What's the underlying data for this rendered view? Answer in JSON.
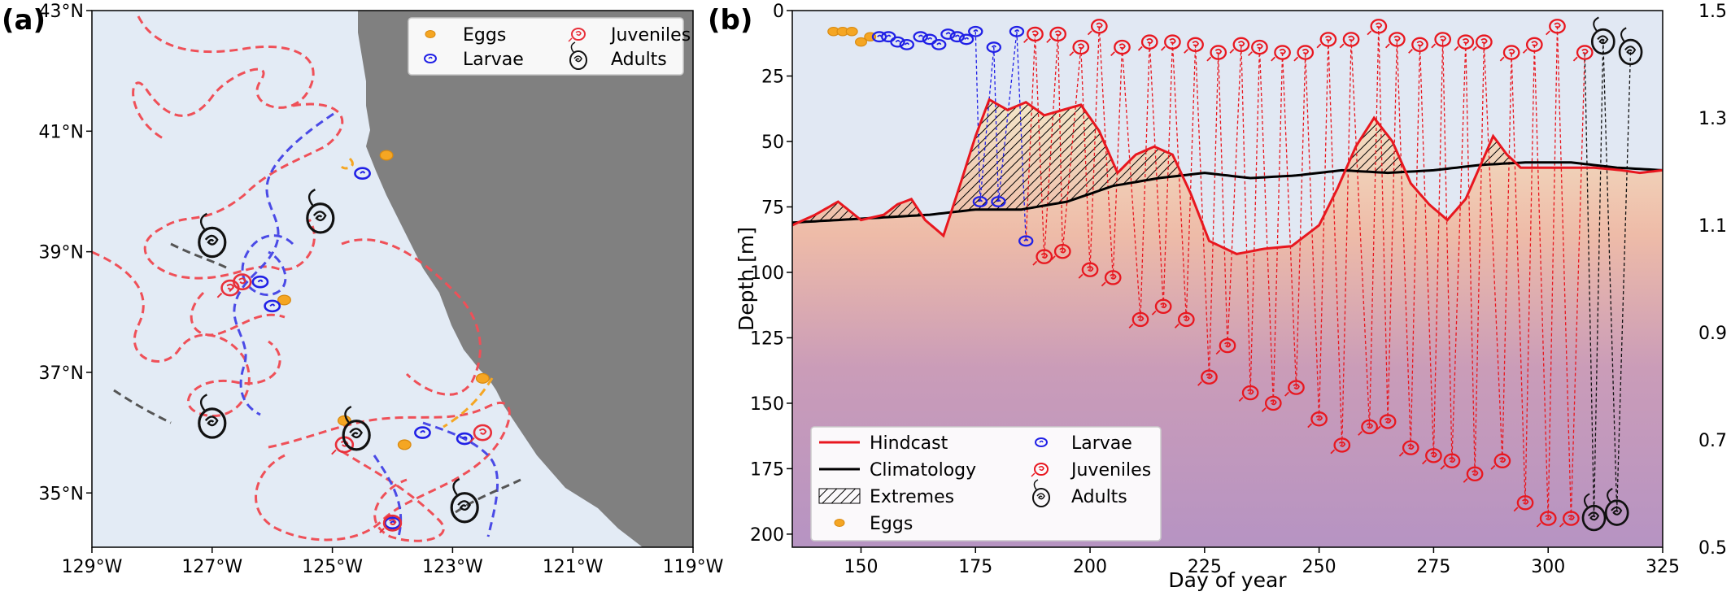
{
  "chart_data": [
    {
      "panel": "(a)",
      "type": "map",
      "x_ticks": [
        "129°W",
        "127°W",
        "125°W",
        "123°W",
        "121°W",
        "119°W"
      ],
      "y_ticks": [
        "43°N",
        "41°N",
        "39°N",
        "37°N",
        "35°N"
      ],
      "xlim": [
        -129,
        -119
      ],
      "ylim": [
        34.1,
        43
      ],
      "legend": [
        "Eggs",
        "Juveniles",
        "Larvae",
        "Adults"
      ],
      "legend_position": "top-right",
      "colors": {
        "ocean": "#e3ebf5",
        "land": "#808080",
        "eggs": "#f5a623",
        "larvae": "#2020e6",
        "juveniles": "#e8303a",
        "adults": "#111111"
      },
      "markers": {
        "adults": [
          {
            "lon": -127.0,
            "lat": 39.2
          },
          {
            "lon": -125.2,
            "lat": 39.6
          },
          {
            "lon": -127.0,
            "lat": 36.2
          },
          {
            "lon": -124.6,
            "lat": 36.0
          },
          {
            "lon": -122.8,
            "lat": 34.8
          }
        ],
        "juveniles": [
          {
            "lon": -126.7,
            "lat": 38.4
          },
          {
            "lon": -126.5,
            "lat": 38.5
          },
          {
            "lon": -124.8,
            "lat": 35.8
          },
          {
            "lon": -122.5,
            "lat": 36.0
          },
          {
            "lon": -124.0,
            "lat": 34.5
          }
        ],
        "larvae": [
          {
            "lon": -124.5,
            "lat": 40.3
          },
          {
            "lon": -126.2,
            "lat": 38.5
          },
          {
            "lon": -126.0,
            "lat": 38.1
          },
          {
            "lon": -123.5,
            "lat": 36.0
          },
          {
            "lon": -122.8,
            "lat": 35.9
          },
          {
            "lon": -124.0,
            "lat": 34.5
          }
        ],
        "eggs": [
          {
            "lon": -124.1,
            "lat": 40.6
          },
          {
            "lon": -125.8,
            "lat": 38.2
          },
          {
            "lon": -122.5,
            "lat": 36.9
          },
          {
            "lon": -123.8,
            "lat": 35.8
          },
          {
            "lon": -124.8,
            "lat": 36.2
          }
        ]
      }
    },
    {
      "panel": "(b)",
      "type": "line",
      "xlabel": "Day of year",
      "ylabel": "Depth [m]",
      "xlim": [
        135,
        325
      ],
      "ylim": [
        205,
        0
      ],
      "x_ticks": [
        150,
        175,
        200,
        225,
        250,
        275,
        300,
        325
      ],
      "y_ticks": [
        0,
        25,
        50,
        75,
        100,
        125,
        150,
        175,
        200
      ],
      "right_ticks": [
        "1.5",
        "1.3",
        "1.1",
        "0.9",
        "0.7",
        "0.5"
      ],
      "legend": [
        "Hindcast",
        "Climatology",
        "Extremes",
        "Eggs",
        "Larvae",
        "Juveniles",
        "Adults"
      ],
      "legend_position": "lower-left",
      "colors": {
        "hindcast": "#e8171f",
        "climatology": "#000000",
        "eggs": "#f5a623",
        "larvae": "#2020e6",
        "juveniles": "#e8171f",
        "adults": "#111111",
        "background": "#e1e8f3"
      },
      "series": [
        {
          "name": "Hindcast",
          "x": [
            135,
            140,
            145,
            150,
            155,
            158,
            161,
            164,
            168,
            171,
            175,
            178,
            182,
            186,
            190,
            194,
            198,
            202,
            206,
            210,
            214,
            218,
            222,
            226,
            232,
            238,
            244,
            250,
            254,
            258,
            262,
            266,
            270,
            274,
            278,
            282,
            285,
            288,
            291,
            294,
            298,
            304,
            310,
            316,
            320,
            325
          ],
          "y": [
            82,
            78,
            73,
            80,
            78,
            74,
            72,
            80,
            86,
            70,
            48,
            34,
            38,
            35,
            40,
            38,
            36,
            46,
            62,
            55,
            52,
            55,
            70,
            88,
            93,
            91,
            90,
            82,
            68,
            52,
            41,
            50,
            66,
            74,
            80,
            72,
            60,
            48,
            55,
            60,
            60,
            60,
            60,
            61,
            62,
            61
          ]
        },
        {
          "name": "Climatology",
          "x": [
            135,
            145,
            155,
            165,
            175,
            185,
            195,
            205,
            215,
            225,
            235,
            245,
            255,
            265,
            275,
            285,
            295,
            305,
            315,
            325
          ],
          "y": [
            81,
            80,
            79,
            78,
            76,
            76,
            73,
            67,
            64,
            62,
            64,
            63,
            61,
            62,
            61,
            59,
            58,
            58,
            60,
            61
          ]
        }
      ],
      "markers": {
        "eggs": [
          {
            "day": 144,
            "depth": 8
          },
          {
            "day": 146,
            "depth": 8
          },
          {
            "day": 148,
            "depth": 8
          },
          {
            "day": 150,
            "depth": 12
          },
          {
            "day": 152,
            "depth": 10
          }
        ],
        "larvae": [
          {
            "day": 154,
            "depth": 10
          },
          {
            "day": 156,
            "depth": 10
          },
          {
            "day": 158,
            "depth": 12
          },
          {
            "day": 160,
            "depth": 13
          },
          {
            "day": 163,
            "depth": 10
          },
          {
            "day": 165,
            "depth": 11
          },
          {
            "day": 167,
            "depth": 13
          },
          {
            "day": 169,
            "depth": 9
          },
          {
            "day": 171,
            "depth": 10
          },
          {
            "day": 173,
            "depth": 11
          },
          {
            "day": 175,
            "depth": 8
          },
          {
            "day": 176,
            "depth": 73
          },
          {
            "day": 179,
            "depth": 14
          },
          {
            "day": 180,
            "depth": 73
          },
          {
            "day": 184,
            "depth": 8
          },
          {
            "day": 186,
            "depth": 88
          }
        ],
        "juveniles": [
          {
            "day": 188,
            "depth": 9
          },
          {
            "day": 190,
            "depth": 94
          },
          {
            "day": 193,
            "depth": 9
          },
          {
            "day": 194,
            "depth": 92
          },
          {
            "day": 198,
            "depth": 14
          },
          {
            "day": 200,
            "depth": 99
          },
          {
            "day": 202,
            "depth": 6
          },
          {
            "day": 205,
            "depth": 102
          },
          {
            "day": 207,
            "depth": 14
          },
          {
            "day": 211,
            "depth": 118
          },
          {
            "day": 213,
            "depth": 12
          },
          {
            "day": 216,
            "depth": 113
          },
          {
            "day": 218,
            "depth": 12
          },
          {
            "day": 221,
            "depth": 118
          },
          {
            "day": 223,
            "depth": 13
          },
          {
            "day": 226,
            "depth": 140
          },
          {
            "day": 228,
            "depth": 16
          },
          {
            "day": 230,
            "depth": 128
          },
          {
            "day": 233,
            "depth": 13
          },
          {
            "day": 235,
            "depth": 146
          },
          {
            "day": 237,
            "depth": 14
          },
          {
            "day": 240,
            "depth": 150
          },
          {
            "day": 242,
            "depth": 16
          },
          {
            "day": 245,
            "depth": 144
          },
          {
            "day": 247,
            "depth": 16
          },
          {
            "day": 250,
            "depth": 156
          },
          {
            "day": 252,
            "depth": 11
          },
          {
            "day": 255,
            "depth": 166
          },
          {
            "day": 257,
            "depth": 11
          },
          {
            "day": 261,
            "depth": 159
          },
          {
            "day": 263,
            "depth": 6
          },
          {
            "day": 265,
            "depth": 157
          },
          {
            "day": 267,
            "depth": 11
          },
          {
            "day": 270,
            "depth": 167
          },
          {
            "day": 272,
            "depth": 13
          },
          {
            "day": 275,
            "depth": 170
          },
          {
            "day": 277,
            "depth": 11
          },
          {
            "day": 279,
            "depth": 172
          },
          {
            "day": 282,
            "depth": 12
          },
          {
            "day": 284,
            "depth": 177
          },
          {
            "day": 286,
            "depth": 12
          },
          {
            "day": 290,
            "depth": 172
          },
          {
            "day": 292,
            "depth": 16
          },
          {
            "day": 295,
            "depth": 188
          },
          {
            "day": 297,
            "depth": 13
          },
          {
            "day": 300,
            "depth": 194
          },
          {
            "day": 302,
            "depth": 6
          },
          {
            "day": 305,
            "depth": 194
          },
          {
            "day": 308,
            "depth": 16
          }
        ],
        "adults": [
          {
            "day": 310,
            "depth": 193
          },
          {
            "day": 312,
            "depth": 11
          },
          {
            "day": 315,
            "depth": 191
          },
          {
            "day": 318,
            "depth": 15
          }
        ]
      }
    }
  ]
}
